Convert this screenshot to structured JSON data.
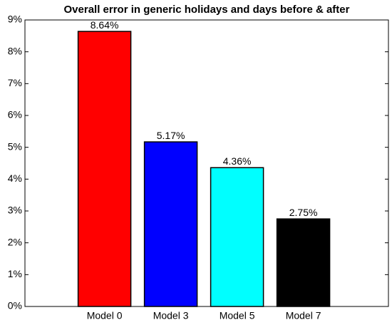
{
  "chart_data": {
    "type": "bar",
    "title": "Overall error in generic holidays and days before & after",
    "categories": [
      "Model 0",
      "Model 3",
      "Model 5",
      "Model 7"
    ],
    "values": [
      8.64,
      5.17,
      4.36,
      2.75
    ],
    "value_labels": [
      "8.64%",
      "5.17%",
      "4.36%",
      "2.75%"
    ],
    "colors": [
      "#ff0000",
      "#0000ff",
      "#00ffff",
      "#000000"
    ],
    "ylim": [
      0,
      9
    ],
    "yticks": [
      {
        "value": 0,
        "label": "0%"
      },
      {
        "value": 1,
        "label": "1%"
      },
      {
        "value": 2,
        "label": "2%"
      },
      {
        "value": 3,
        "label": "3%"
      },
      {
        "value": 4,
        "label": "4%"
      },
      {
        "value": 5,
        "label": "5%"
      },
      {
        "value": 6,
        "label": "6%"
      },
      {
        "value": 7,
        "label": "7%"
      },
      {
        "value": 8,
        "label": "8%"
      },
      {
        "value": 9,
        "label": "9%"
      }
    ],
    "grid": false
  }
}
